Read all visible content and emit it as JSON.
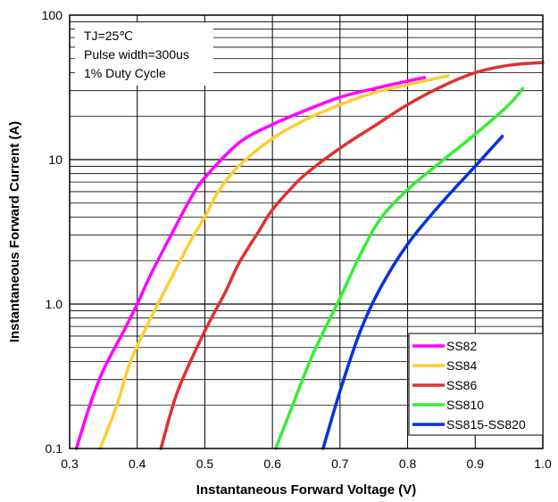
{
  "chart_data": {
    "type": "line",
    "title": "",
    "xlabel": "Instantaneous Forward Voltage (V)",
    "ylabel": "Instantaneous Forward Current (A)",
    "x_scale": "linear",
    "y_scale": "log",
    "xlim": [
      0.3,
      1.0
    ],
    "ylim": [
      0.1,
      100
    ],
    "grid": true,
    "legend_position": "bottom-right",
    "x_ticks": [
      "0.3",
      "0.4",
      "0.5",
      "0.6",
      "0.7",
      "0.8",
      "0.9",
      "1.0"
    ],
    "y_ticks": [
      "0.1",
      "1.0",
      "10",
      "100"
    ],
    "annotations": [
      "TJ=25℃",
      "Pulse width=300us",
      "1% Duty Cycle"
    ],
    "series": [
      {
        "name": "SS82",
        "color": "#ff00ff",
        "points": [
          [
            0.31,
            0.1
          ],
          [
            0.33,
            0.2
          ],
          [
            0.35,
            0.35
          ],
          [
            0.38,
            0.65
          ],
          [
            0.4,
            1.0
          ],
          [
            0.42,
            1.6
          ],
          [
            0.45,
            3.0
          ],
          [
            0.48,
            5.5
          ],
          [
            0.5,
            7.5
          ],
          [
            0.55,
            13
          ],
          [
            0.6,
            17.5
          ],
          [
            0.65,
            22
          ],
          [
            0.7,
            27
          ],
          [
            0.75,
            31
          ],
          [
            0.8,
            35
          ],
          [
            0.825,
            37
          ]
        ]
      },
      {
        "name": "SS84",
        "color": "#ffcc33",
        "points": [
          [
            0.345,
            0.1
          ],
          [
            0.37,
            0.2
          ],
          [
            0.39,
            0.4
          ],
          [
            0.42,
            0.8
          ],
          [
            0.45,
            1.5
          ],
          [
            0.48,
            2.8
          ],
          [
            0.5,
            4.0
          ],
          [
            0.52,
            6.0
          ],
          [
            0.55,
            9.0
          ],
          [
            0.6,
            14
          ],
          [
            0.65,
            19
          ],
          [
            0.7,
            24
          ],
          [
            0.75,
            29
          ],
          [
            0.8,
            33
          ],
          [
            0.86,
            38
          ]
        ]
      },
      {
        "name": "SS86",
        "color": "#e03030",
        "points": [
          [
            0.435,
            0.1
          ],
          [
            0.46,
            0.25
          ],
          [
            0.5,
            0.65
          ],
          [
            0.53,
            1.2
          ],
          [
            0.55,
            1.9
          ],
          [
            0.58,
            3.2
          ],
          [
            0.6,
            4.5
          ],
          [
            0.63,
            6.5
          ],
          [
            0.65,
            8.0
          ],
          [
            0.7,
            12
          ],
          [
            0.75,
            17
          ],
          [
            0.8,
            24
          ],
          [
            0.85,
            32
          ],
          [
            0.9,
            40
          ],
          [
            0.95,
            45
          ],
          [
            1.0,
            47
          ]
        ]
      },
      {
        "name": "SS810",
        "color": "#33ee33",
        "points": [
          [
            0.605,
            0.1
          ],
          [
            0.63,
            0.2
          ],
          [
            0.66,
            0.45
          ],
          [
            0.7,
            1.1
          ],
          [
            0.73,
            2.2
          ],
          [
            0.76,
            3.9
          ],
          [
            0.8,
            6.2
          ],
          [
            0.85,
            9.7
          ],
          [
            0.9,
            15
          ],
          [
            0.95,
            24
          ],
          [
            0.97,
            31
          ]
        ]
      },
      {
        "name": "SS815-SS820",
        "color": "#0033dd",
        "points": [
          [
            0.675,
            0.1
          ],
          [
            0.7,
            0.25
          ],
          [
            0.73,
            0.65
          ],
          [
            0.76,
            1.3
          ],
          [
            0.8,
            2.6
          ],
          [
            0.85,
            5.0
          ],
          [
            0.9,
            9.0
          ],
          [
            0.94,
            14.5
          ]
        ]
      }
    ]
  }
}
